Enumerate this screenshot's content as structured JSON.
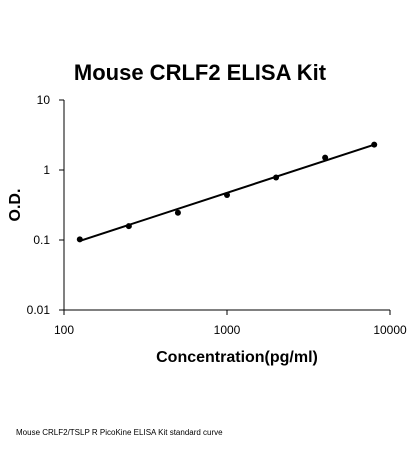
{
  "chart_data": {
    "type": "scatter",
    "title": "Mouse CRLF2 ELISA Kit",
    "xlabel": "Concentration(pg/ml)",
    "ylabel": "O.D.",
    "x_scale": "log",
    "y_scale": "log",
    "xlim": [
      100,
      10000
    ],
    "ylim": [
      0.01,
      10
    ],
    "x_ticks": [
      "100",
      "1000",
      "10000"
    ],
    "y_ticks": [
      "0.01",
      "0.1",
      "1",
      "10"
    ],
    "grid": false,
    "series": [
      {
        "points": [
          {
            "x": 125,
            "y": 0.102
          },
          {
            "x": 250,
            "y": 0.158
          },
          {
            "x": 500,
            "y": 0.245
          },
          {
            "x": 1000,
            "y": 0.44
          },
          {
            "x": 2000,
            "y": 0.78
          },
          {
            "x": 4000,
            "y": 1.5
          },
          {
            "x": 8000,
            "y": 2.3
          }
        ]
      }
    ],
    "trendline": {
      "type": "power",
      "from": {
        "x": 125,
        "y": 0.097
      },
      "to": {
        "x": 8000,
        "y": 2.3
      }
    },
    "colors": {
      "points": "#000000",
      "line": "#000000",
      "axes": "#000000"
    }
  },
  "caption": "Mouse CRLF2/TSLP R PicoKine ELISA Kit standard curve"
}
